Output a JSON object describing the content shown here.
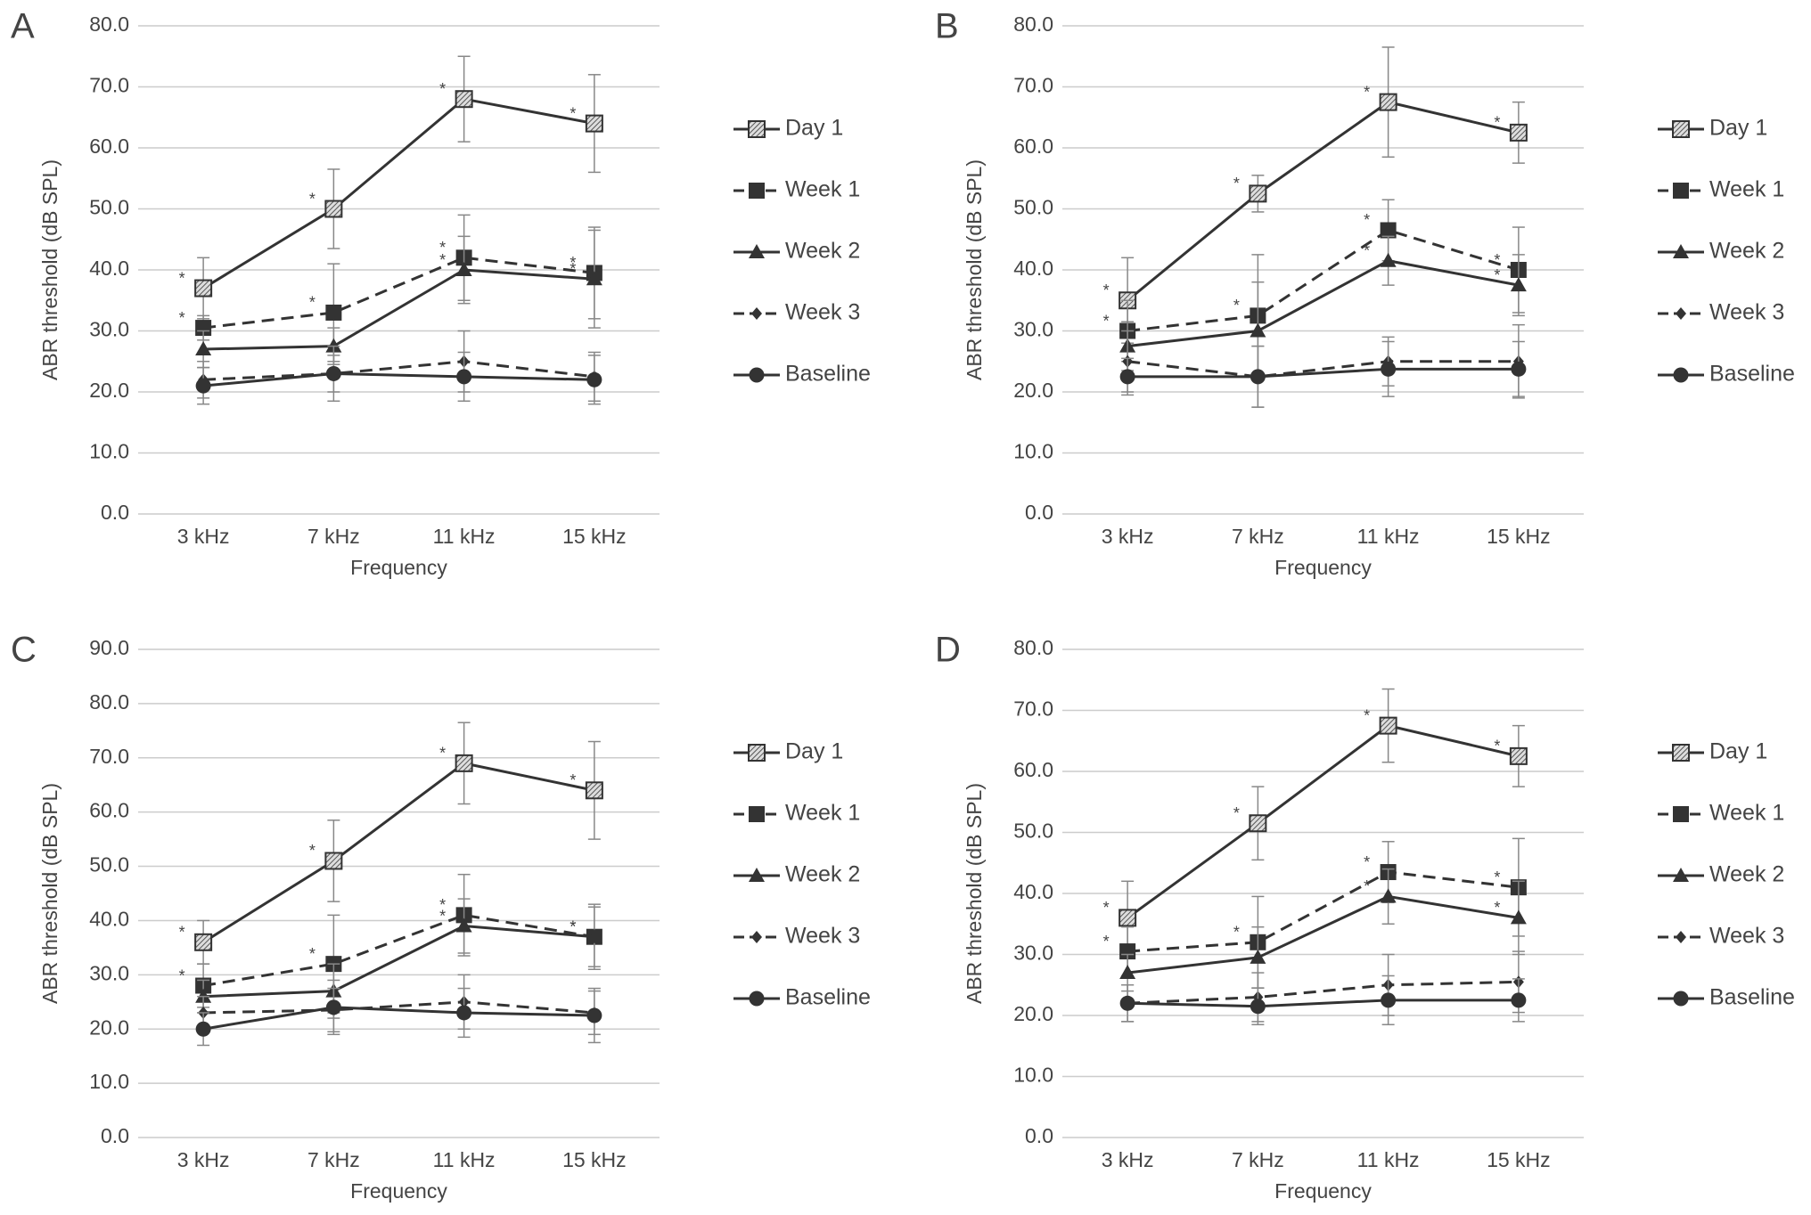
{
  "chart_data": [
    {
      "type": "line",
      "panel_label": "A",
      "xlabel": "Frequency",
      "ylabel": "ABR threshold (dB SPL)",
      "categories": [
        "3 kHz",
        "7 kHz",
        "11 kHz",
        "15 kHz"
      ],
      "ylim": [
        0,
        80
      ],
      "yticks": [
        {
          "value": 0,
          "label": "0.0"
        },
        {
          "value": 10,
          "label": "10.0"
        },
        {
          "value": 20,
          "label": "20.0"
        },
        {
          "value": 30,
          "label": "30.0"
        },
        {
          "value": 40,
          "label": "40.0"
        },
        {
          "value": 50,
          "label": "50.0"
        },
        {
          "value": 60,
          "label": "60.0"
        },
        {
          "value": 70,
          "label": "70.0"
        },
        {
          "value": 80,
          "label": "80.0"
        }
      ],
      "grid": true,
      "legend": "right",
      "series": [
        {
          "name": "Day 1",
          "color": "#333333",
          "marker": "hatched-square",
          "dashed": false,
          "values": [
            37,
            50,
            68,
            64
          ],
          "errors": [
            5,
            6.5,
            7,
            8
          ],
          "point_labels": [
            "*",
            "*",
            "*",
            "*"
          ]
        },
        {
          "name": "Week 1",
          "color": "#333333",
          "marker": "square",
          "dashed": true,
          "values": [
            30.5,
            33,
            42,
            39.5
          ],
          "errors": [
            2,
            8,
            7,
            7.5
          ],
          "point_labels": [
            "*",
            "*",
            "*",
            "*"
          ]
        },
        {
          "name": "Week 2",
          "color": "#333333",
          "marker": "triangle",
          "dashed": false,
          "values": [
            27,
            27.5,
            40,
            38.5
          ],
          "errors": [
            3,
            3,
            5.5,
            8
          ],
          "point_labels": [
            null,
            null,
            "*",
            "*"
          ]
        },
        {
          "name": "Week 3",
          "color": "#333333",
          "marker": "diamond",
          "dashed": true,
          "values": [
            22,
            23,
            25,
            22.5
          ],
          "errors": [
            3,
            3,
            5,
            4
          ]
        },
        {
          "name": "Baseline",
          "color": "#333333",
          "marker": "circle",
          "dashed": false,
          "values": [
            21,
            23,
            22.5,
            22
          ],
          "errors": [
            3,
            4.5,
            4,
            4
          ]
        }
      ]
    },
    {
      "type": "line",
      "panel_label": "B",
      "xlabel": "Frequency",
      "ylabel": "ABR threshold (dB SPL)",
      "categories": [
        "3 kHz",
        "7 kHz",
        "11 kHz",
        "15 kHz"
      ],
      "ylim": [
        0,
        80
      ],
      "yticks": [
        {
          "value": 0,
          "label": "0.0"
        },
        {
          "value": 10,
          "label": "10.0"
        },
        {
          "value": 20,
          "label": "20.0"
        },
        {
          "value": 30,
          "label": "30.0"
        },
        {
          "value": 40,
          "label": "40.0"
        },
        {
          "value": 50,
          "label": "50.0"
        },
        {
          "value": 60,
          "label": "60.0"
        },
        {
          "value": 70,
          "label": "70.0"
        },
        {
          "value": 80,
          "label": "80.0"
        }
      ],
      "grid": true,
      "legend": "right",
      "series": [
        {
          "name": "Day 1",
          "color": "#333333",
          "marker": "hatched-square",
          "dashed": false,
          "values": [
            35,
            52.5,
            67.5,
            62.5
          ],
          "errors": [
            7,
            3,
            9,
            5
          ],
          "point_labels": [
            "*",
            "*",
            "*",
            "*"
          ]
        },
        {
          "name": "Week 1",
          "color": "#333333",
          "marker": "square",
          "dashed": true,
          "values": [
            30,
            32.5,
            46.5,
            40
          ],
          "errors": [
            5,
            10,
            5,
            7
          ],
          "point_labels": [
            "*",
            "*",
            "*",
            "*"
          ]
        },
        {
          "name": "Week 2",
          "color": "#333333",
          "marker": "triangle",
          "dashed": false,
          "values": [
            27.5,
            30,
            41.5,
            37.5
          ],
          "errors": [
            4,
            8,
            4,
            5
          ],
          "point_labels": [
            null,
            null,
            "*",
            "*"
          ]
        },
        {
          "name": "Week 3",
          "color": "#333333",
          "marker": "diamond",
          "dashed": true,
          "values": [
            25,
            22.5,
            25,
            25
          ],
          "errors": [
            5,
            5,
            4,
            6
          ]
        },
        {
          "name": "Baseline",
          "color": "#333333",
          "marker": "circle",
          "dashed": false,
          "values": [
            22.5,
            22.5,
            23.75,
            23.75
          ],
          "errors": [
            3,
            5,
            4.5,
            4.5
          ]
        }
      ]
    },
    {
      "type": "line",
      "panel_label": "C",
      "xlabel": "Frequency",
      "ylabel": "ABR threshold (dB SPL)",
      "categories": [
        "3 kHz",
        "7 kHz",
        "11 kHz",
        "15 kHz"
      ],
      "ylim": [
        0,
        90
      ],
      "yticks": [
        {
          "value": 0,
          "label": "0.0"
        },
        {
          "value": 10,
          "label": "10.0"
        },
        {
          "value": 20,
          "label": "20.0"
        },
        {
          "value": 30,
          "label": "30.0"
        },
        {
          "value": 40,
          "label": "40.0"
        },
        {
          "value": 50,
          "label": "50.0"
        },
        {
          "value": 60,
          "label": "60.0"
        },
        {
          "value": 70,
          "label": "70.0"
        },
        {
          "value": 80,
          "label": "80.0"
        },
        {
          "value": 90,
          "label": "90.0"
        }
      ],
      "grid": true,
      "legend": "right",
      "series": [
        {
          "name": "Day 1",
          "color": "#333333",
          "marker": "hatched-square",
          "dashed": false,
          "values": [
            36,
            51,
            69,
            64
          ],
          "errors": [
            4,
            7.5,
            7.5,
            9
          ],
          "point_labels": [
            "*",
            "*",
            "*",
            "*"
          ]
        },
        {
          "name": "Week 1",
          "color": "#333333",
          "marker": "square",
          "dashed": true,
          "values": [
            28,
            32,
            41,
            37
          ],
          "errors": [
            4,
            9,
            7.5,
            5.5
          ],
          "point_labels": [
            "*",
            "*",
            "*",
            "*"
          ]
        },
        {
          "name": "Week 2",
          "color": "#333333",
          "marker": "triangle",
          "dashed": false,
          "values": [
            26,
            27,
            39,
            37
          ],
          "errors": [
            3,
            5,
            5,
            6
          ],
          "point_labels": [
            null,
            null,
            "*",
            "*"
          ]
        },
        {
          "name": "Week 3",
          "color": "#333333",
          "marker": "diamond",
          "dashed": true,
          "values": [
            23,
            23.5,
            25,
            23
          ],
          "errors": [
            3,
            4,
            5,
            4
          ]
        },
        {
          "name": "Baseline",
          "color": "#333333",
          "marker": "circle",
          "dashed": false,
          "values": [
            20,
            24,
            23,
            22.5
          ],
          "errors": [
            3,
            5,
            4.5,
            5
          ]
        }
      ]
    },
    {
      "type": "line",
      "panel_label": "D",
      "xlabel": "Frequency",
      "ylabel": "ABR threshold (dB SPL)",
      "categories": [
        "3 kHz",
        "7 kHz",
        "11 kHz",
        "15 kHz"
      ],
      "ylim": [
        0,
        80
      ],
      "yticks": [
        {
          "value": 0,
          "label": "0.0"
        },
        {
          "value": 10,
          "label": "10.0"
        },
        {
          "value": 20,
          "label": "20.0"
        },
        {
          "value": 30,
          "label": "30.0"
        },
        {
          "value": 40,
          "label": "40.0"
        },
        {
          "value": 50,
          "label": "50.0"
        },
        {
          "value": 60,
          "label": "60.0"
        },
        {
          "value": 70,
          "label": "70.0"
        },
        {
          "value": 80,
          "label": "80.0"
        }
      ],
      "grid": true,
      "legend": "right",
      "series": [
        {
          "name": "Day 1",
          "color": "#333333",
          "marker": "hatched-square",
          "dashed": false,
          "values": [
            36,
            51.5,
            67.5,
            62.5
          ],
          "errors": [
            6,
            6,
            6,
            5
          ],
          "point_labels": [
            "*",
            "*",
            "*",
            "*"
          ]
        },
        {
          "name": "Week 1",
          "color": "#333333",
          "marker": "square",
          "dashed": true,
          "values": [
            30.5,
            32,
            43.5,
            41
          ],
          "errors": [
            4,
            7.5,
            5,
            8
          ],
          "point_labels": [
            "*",
            "*",
            "*",
            "*"
          ]
        },
        {
          "name": "Week 2",
          "color": "#333333",
          "marker": "triangle",
          "dashed": false,
          "values": [
            27,
            29.5,
            39.5,
            36
          ],
          "errors": [
            3,
            5,
            4.5,
            6
          ],
          "point_labels": [
            null,
            null,
            "*",
            "*"
          ]
        },
        {
          "name": "Week 3",
          "color": "#333333",
          "marker": "diamond",
          "dashed": true,
          "values": [
            22,
            23,
            25,
            25.5
          ],
          "errors": [
            3,
            4,
            5,
            5
          ]
        },
        {
          "name": "Baseline",
          "color": "#333333",
          "marker": "circle",
          "dashed": false,
          "values": [
            22,
            21.5,
            22.5,
            22.5
          ],
          "errors": [
            3,
            3,
            4,
            3.5
          ]
        }
      ]
    }
  ]
}
